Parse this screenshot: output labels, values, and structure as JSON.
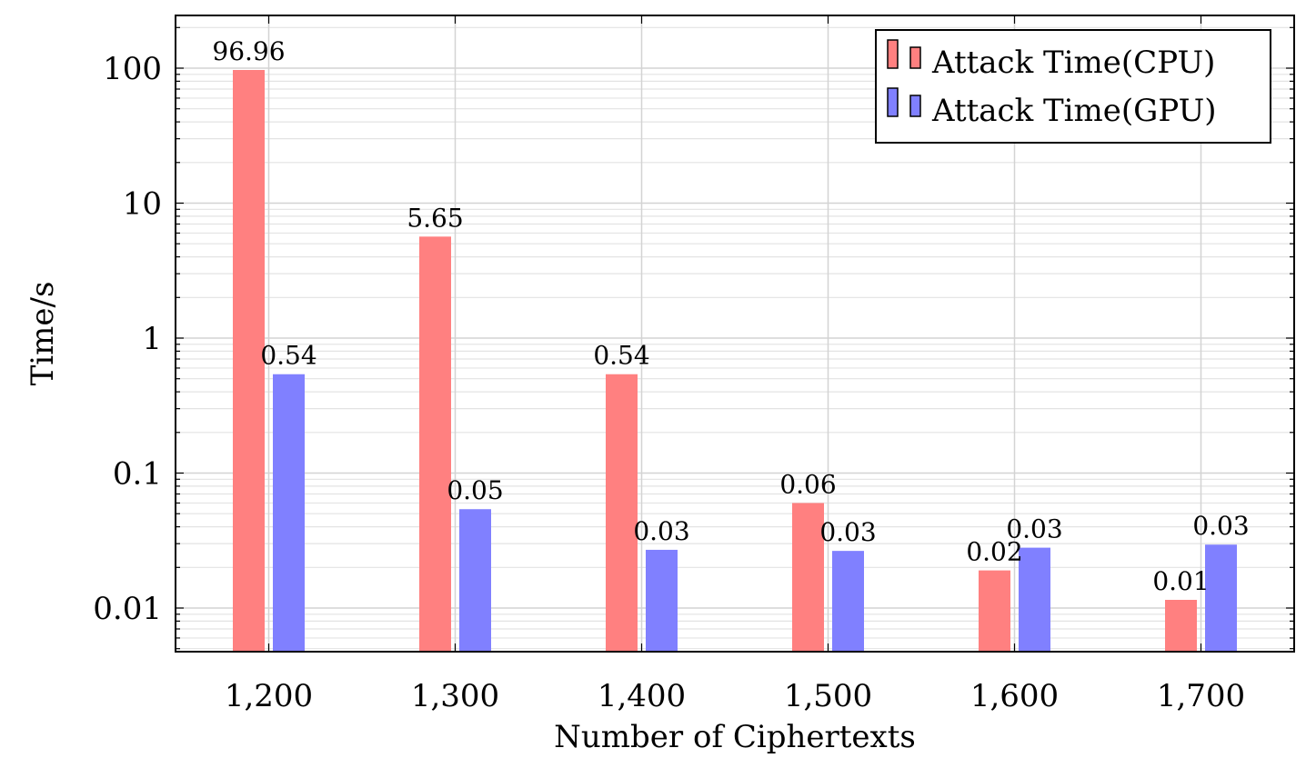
{
  "chart_data": {
    "type": "bar",
    "title": "",
    "xlabel": "Number of Ciphertexts",
    "ylabel": "Time/s",
    "yscale": "log",
    "ylim": [
      0.0046,
      250
    ],
    "grid": true,
    "legend_position": "top-right",
    "categories": [
      "1,200",
      "1,300",
      "1,400",
      "1,500",
      "1,600",
      "1,700"
    ],
    "x": [
      1200,
      1300,
      1400,
      1500,
      1600,
      1700
    ],
    "xlim": [
      1150,
      1750
    ],
    "yticks": [
      {
        "value": 0.01,
        "label": "0.01"
      },
      {
        "value": 0.1,
        "label": "0.1"
      },
      {
        "value": 1,
        "label": "1"
      },
      {
        "value": 10,
        "label": "10"
      },
      {
        "value": 100,
        "label": "100"
      }
    ],
    "series": [
      {
        "name": "Attack Time(CPU)",
        "color": "#ff8080",
        "values": [
          96.96,
          5.65,
          0.54,
          0.06,
          0.019,
          0.0115
        ],
        "labels": [
          "96.96",
          "5.65",
          "0.54",
          "0.06",
          "0.02",
          "0.01"
        ]
      },
      {
        "name": "Attack Time(GPU)",
        "color": "#8080ff",
        "values": [
          0.54,
          0.054,
          0.027,
          0.0265,
          0.028,
          0.0295
        ],
        "labels": [
          "0.54",
          "0.05",
          "0.03",
          "0.03",
          "0.03",
          "0.03"
        ]
      }
    ]
  }
}
